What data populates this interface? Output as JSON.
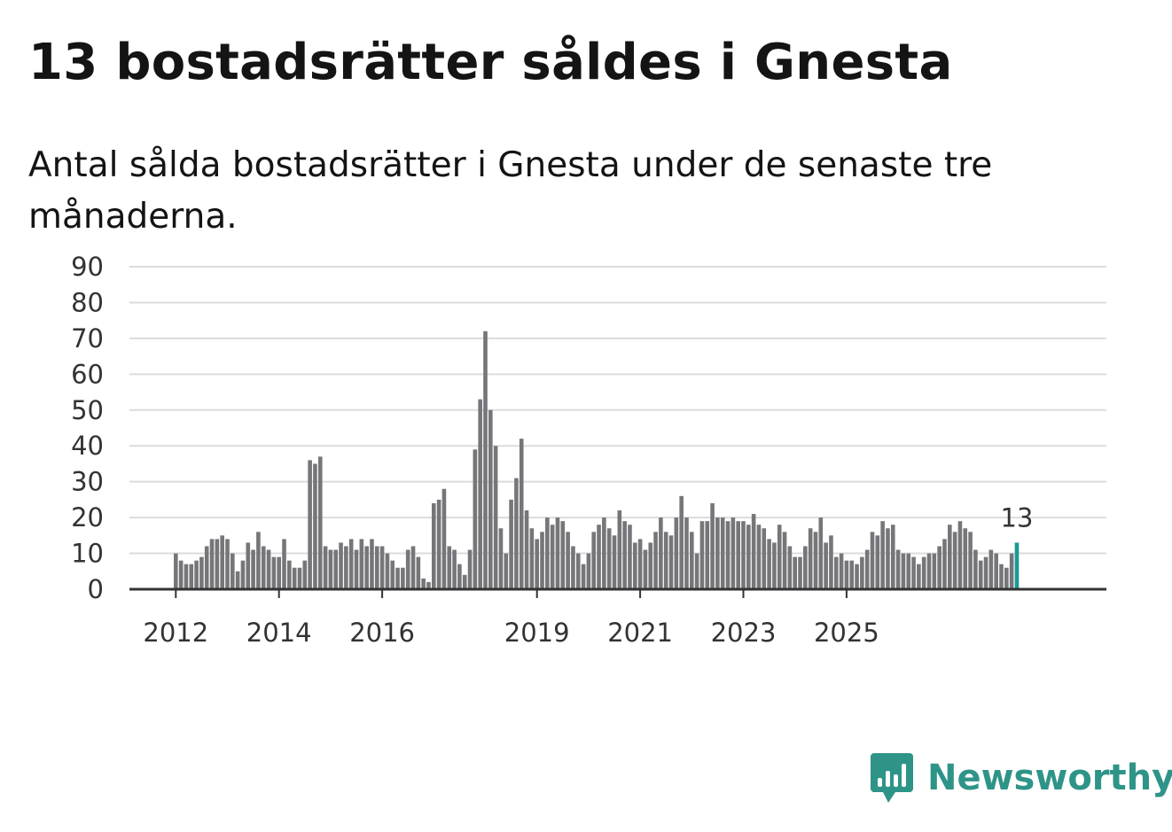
{
  "title": "13 bostadsrätter såldes i Gnesta",
  "subtitle": "Antal sålda bostadsrätter i Gnesta under de senaste tre månaderna.",
  "brand": {
    "name": "Newsworthy",
    "icon": "newsworthy-logo-icon"
  },
  "colors": {
    "bar": "#76767a",
    "highlight": "#1a9a93",
    "brand": "#2e9488",
    "grid": "#dcdcdc",
    "axis": "#333333"
  },
  "chart_data": {
    "type": "bar",
    "xlabel": "",
    "ylabel": "",
    "ylim": [
      0,
      90
    ],
    "yticks": [
      0,
      10,
      20,
      30,
      40,
      50,
      60,
      70,
      80,
      90
    ],
    "xticks": [
      {
        "label": "2012",
        "index": 0
      },
      {
        "label": "2014",
        "index": 20
      },
      {
        "label": "2016",
        "index": 40
      },
      {
        "label": "2019",
        "index": 70
      },
      {
        "label": "2021",
        "index": 90
      },
      {
        "label": "2023",
        "index": 110
      },
      {
        "label": "2025",
        "index": 130
      }
    ],
    "grid": true,
    "highlight_last": true,
    "annotation": {
      "text": "13",
      "value": 13
    },
    "values": [
      10,
      8,
      7,
      7,
      8,
      9,
      12,
      14,
      14,
      15,
      14,
      10,
      5,
      8,
      13,
      11,
      16,
      12,
      11,
      9,
      9,
      14,
      8,
      6,
      6,
      8,
      36,
      35,
      37,
      12,
      11,
      11,
      13,
      12,
      14,
      11,
      14,
      12,
      14,
      12,
      12,
      10,
      8,
      6,
      6,
      11,
      12,
      9,
      3,
      2,
      24,
      25,
      28,
      12,
      11,
      7,
      4,
      11,
      39,
      53,
      72,
      50,
      40,
      17,
      10,
      25,
      31,
      42,
      22,
      17,
      14,
      16,
      20,
      18,
      20,
      19,
      16,
      12,
      10,
      7,
      10,
      16,
      18,
      20,
      17,
      15,
      22,
      19,
      18,
      13,
      14,
      11,
      13,
      16,
      20,
      16,
      15,
      20,
      26,
      20,
      16,
      10,
      19,
      19,
      24,
      20,
      20,
      19,
      20,
      19,
      19,
      18,
      21,
      18,
      17,
      14,
      13,
      18,
      16,
      12,
      9,
      9,
      12,
      17,
      16,
      20,
      13,
      15,
      9,
      10,
      8,
      8,
      7,
      9,
      11,
      16,
      15,
      19,
      17,
      18,
      11,
      10,
      10,
      9,
      7,
      9,
      10,
      10,
      12,
      14,
      18,
      16,
      19,
      17,
      16,
      11,
      8,
      9,
      11,
      10,
      7,
      6,
      10,
      13
    ]
  }
}
